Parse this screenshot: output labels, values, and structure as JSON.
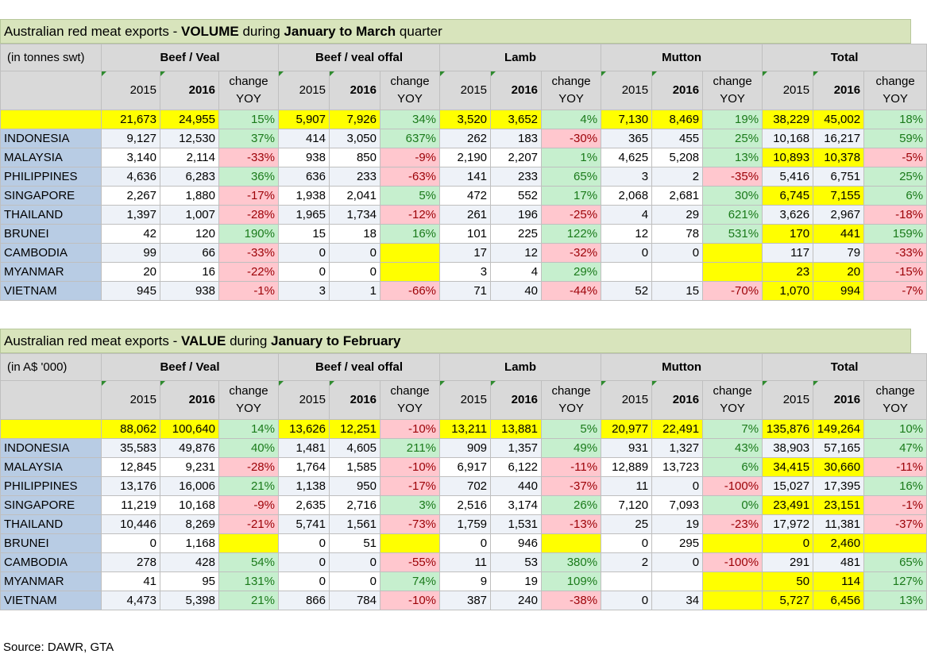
{
  "volume": {
    "title_prefix": "Australian red meat exports - ",
    "title_measure": "VOLUME",
    "title_mid": " during ",
    "title_period": "January to March",
    "title_suffix": " quarter",
    "unit": "(in tonnes swt)",
    "groups": [
      "Beef / Veal",
      "Beef / veal offal",
      "Lamb",
      "Mutton",
      "Total"
    ],
    "col_labels": {
      "y2015": "2015",
      "y2016": "2016",
      "change1": "change",
      "change2": "YOY"
    },
    "total": [
      "21,673",
      "24,955",
      "15%",
      "5,907",
      "7,926",
      "34%",
      "3,520",
      "3,652",
      "4%",
      "7,130",
      "8,469",
      "19%",
      "38,229",
      "45,002",
      "18%"
    ],
    "rows": [
      {
        "name": "INDONESIA",
        "cells": [
          "9,127",
          "12,530",
          "37%",
          "414",
          "3,050",
          "637%",
          "262",
          "183",
          "-30%",
          "365",
          "455",
          "25%",
          "10,168",
          "16,217",
          "59%"
        ]
      },
      {
        "name": "MALAYSIA",
        "cells": [
          "3,140",
          "2,114",
          "-33%",
          "938",
          "850",
          "-9%",
          "2,190",
          "2,207",
          "1%",
          "4,625",
          "5,208",
          "13%",
          "10,893",
          "10,378",
          "-5%"
        ]
      },
      {
        "name": "PHILIPPINES",
        "cells": [
          "4,636",
          "6,283",
          "36%",
          "636",
          "233",
          "-63%",
          "141",
          "233",
          "65%",
          "3",
          "2",
          "-35%",
          "5,416",
          "6,751",
          "25%"
        ]
      },
      {
        "name": "SINGAPORE",
        "cells": [
          "2,267",
          "1,880",
          "-17%",
          "1,938",
          "2,041",
          "5%",
          "472",
          "552",
          "17%",
          "2,068",
          "2,681",
          "30%",
          "6,745",
          "7,155",
          "6%"
        ]
      },
      {
        "name": "THAILAND",
        "cells": [
          "1,397",
          "1,007",
          "-28%",
          "1,965",
          "1,734",
          "-12%",
          "261",
          "196",
          "-25%",
          "4",
          "29",
          "621%",
          "3,626",
          "2,967",
          "-18%"
        ]
      },
      {
        "name": "BRUNEI",
        "cells": [
          "42",
          "120",
          "190%",
          "15",
          "18",
          "16%",
          "101",
          "225",
          "122%",
          "12",
          "78",
          "531%",
          "170",
          "441",
          "159%"
        ]
      },
      {
        "name": "CAMBODIA",
        "cells": [
          "99",
          "66",
          "-33%",
          "0",
          "0",
          "",
          "17",
          "12",
          "-32%",
          "0",
          "0",
          "",
          "117",
          "79",
          "-33%"
        ]
      },
      {
        "name": "MYANMAR",
        "cells": [
          "20",
          "16",
          "-22%",
          "0",
          "0",
          "",
          "3",
          "4",
          "29%",
          "",
          "",
          "",
          "23",
          "20",
          "-15%"
        ]
      },
      {
        "name": "VIETNAM",
        "cells": [
          "945",
          "938",
          "-1%",
          "3",
          "1",
          "-66%",
          "71",
          "40",
          "-44%",
          "52",
          "15",
          "-70%",
          "1,070",
          "994",
          "-7%"
        ]
      }
    ]
  },
  "value": {
    "title_prefix": "Australian red meat exports - ",
    "title_measure": "VALUE",
    "title_mid": " during ",
    "title_period": "January to February",
    "title_suffix": "",
    "unit": "(in A$ '000)",
    "groups": [
      "Beef / Veal",
      "Beef / veal offal",
      "Lamb",
      "Mutton",
      "Total"
    ],
    "col_labels": {
      "y2015": "2015",
      "y2016": "2016",
      "change1": "change",
      "change2": "YOY"
    },
    "total": [
      "88,062",
      "100,640",
      "14%",
      "13,626",
      "12,251",
      "-10%",
      "13,211",
      "13,881",
      "5%",
      "20,977",
      "22,491",
      "7%",
      "135,876",
      "149,264",
      "10%"
    ],
    "rows": [
      {
        "name": "INDONESIA",
        "cells": [
          "35,583",
          "49,876",
          "40%",
          "1,481",
          "4,605",
          "211%",
          "909",
          "1,357",
          "49%",
          "931",
          "1,327",
          "43%",
          "38,903",
          "57,165",
          "47%"
        ]
      },
      {
        "name": "MALAYSIA",
        "cells": [
          "12,845",
          "9,231",
          "-28%",
          "1,764",
          "1,585",
          "-10%",
          "6,917",
          "6,122",
          "-11%",
          "12,889",
          "13,723",
          "6%",
          "34,415",
          "30,660",
          "-11%"
        ]
      },
      {
        "name": "PHILIPPINES",
        "cells": [
          "13,176",
          "16,006",
          "21%",
          "1,138",
          "950",
          "-17%",
          "702",
          "440",
          "-37%",
          "11",
          "0",
          "-100%",
          "15,027",
          "17,395",
          "16%"
        ]
      },
      {
        "name": "SINGAPORE",
        "cells": [
          "11,219",
          "10,168",
          "-9%",
          "2,635",
          "2,716",
          "3%",
          "2,516",
          "3,174",
          "26%",
          "7,120",
          "7,093",
          "0%",
          "23,491",
          "23,151",
          "-1%"
        ]
      },
      {
        "name": "THAILAND",
        "cells": [
          "10,446",
          "8,269",
          "-21%",
          "5,741",
          "1,561",
          "-73%",
          "1,759",
          "1,531",
          "-13%",
          "25",
          "19",
          "-23%",
          "17,972",
          "11,381",
          "-37%"
        ]
      },
      {
        "name": "BRUNEI",
        "cells": [
          "0",
          "1,168",
          "",
          "0",
          "51",
          "",
          "0",
          "946",
          "",
          "0",
          "295",
          "",
          "0",
          "2,460",
          ""
        ]
      },
      {
        "name": "CAMBODIA",
        "cells": [
          "278",
          "428",
          "54%",
          "0",
          "0",
          "-55%",
          "11",
          "53",
          "380%",
          "2",
          "0",
          "-100%",
          "291",
          "481",
          "65%"
        ]
      },
      {
        "name": "MYANMAR",
        "cells": [
          "41",
          "95",
          "131%",
          "0",
          "0",
          "74%",
          "9",
          "19",
          "109%",
          "",
          "",
          "",
          "50",
          "114",
          "127%"
        ]
      },
      {
        "name": "VIETNAM",
        "cells": [
          "4,473",
          "5,398",
          "21%",
          "866",
          "784",
          "-10%",
          "387",
          "240",
          "-38%",
          "0",
          "34",
          "",
          "5,727",
          "6,456",
          "13%"
        ]
      }
    ]
  },
  "source": "Source: DAWR, GTA",
  "colors": {
    "positive_bg": "#c6efce",
    "negative_bg": "#ffc7ce",
    "highlight": "#ffff00",
    "header_bg": "#d9d9d9",
    "title_bg": "#d8e4bc",
    "row_label_bg": "#b8cce4"
  }
}
